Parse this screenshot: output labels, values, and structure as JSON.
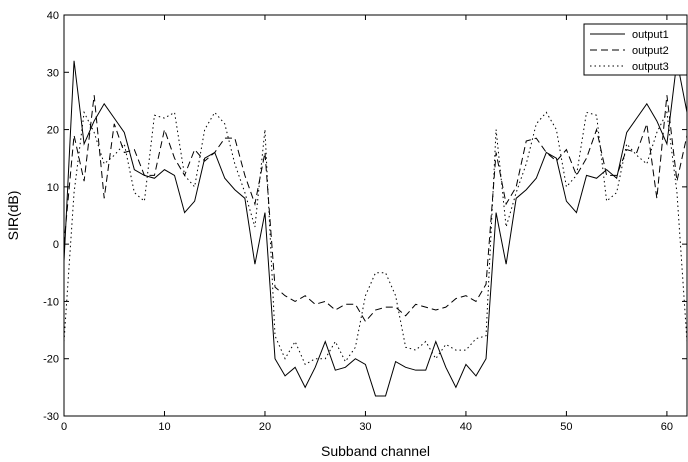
{
  "chart_data": {
    "type": "line",
    "title": "",
    "xlabel": "Subband channel",
    "ylabel": "SIR(dB)",
    "xlim": [
      0,
      62
    ],
    "ylim": [
      -30,
      40
    ],
    "xticks": [
      0,
      10,
      20,
      30,
      40,
      50,
      60
    ],
    "yticks": [
      -30,
      -20,
      -10,
      0,
      10,
      20,
      30,
      40
    ],
    "grid": false,
    "legend_position": "top-right",
    "x": [
      0,
      1,
      2,
      3,
      4,
      5,
      6,
      7,
      8,
      9,
      10,
      11,
      12,
      13,
      14,
      15,
      16,
      17,
      18,
      19,
      20,
      21,
      22,
      23,
      24,
      25,
      26,
      27,
      28,
      29,
      30,
      31,
      32,
      33,
      34,
      35,
      36,
      37,
      38,
      39,
      40,
      41,
      42,
      43,
      44,
      45,
      46,
      47,
      48,
      49,
      50,
      51,
      52,
      53,
      54,
      55,
      56,
      57,
      58,
      59,
      60,
      61,
      62
    ],
    "series": [
      {
        "name": "output1",
        "style": "solid",
        "values": [
          -3,
          32,
          17.5,
          21.5,
          24.5,
          22,
          19.5,
          13,
          12,
          11.5,
          13,
          12,
          5.5,
          7.5,
          15,
          16,
          11.5,
          9.5,
          8,
          -3.5,
          5.5,
          -20,
          -23,
          -21.5,
          -25,
          -21.5,
          -17,
          -22,
          -21.5,
          -20,
          -21,
          -26.5,
          -26.5,
          -20.5,
          -21.5,
          -22,
          -22,
          -17,
          -21.5,
          -25,
          -21,
          -23,
          -20,
          5.5,
          -3.5,
          8,
          9.5,
          11.5,
          16,
          15,
          7.5,
          5.5,
          12,
          11.5,
          13,
          11.5,
          19.5,
          22,
          24.5,
          21.5,
          17.5,
          32,
          23
        ]
      },
      {
        "name": "output2",
        "style": "dashed",
        "values": [
          0,
          19,
          11,
          26,
          8,
          21,
          16,
          16.5,
          12,
          12,
          20,
          15,
          12,
          16.5,
          14.5,
          16,
          18.5,
          18.5,
          12,
          7,
          16,
          -7.5,
          -9,
          -10,
          -9,
          -10.5,
          -10,
          -11.5,
          -10.5,
          -10.5,
          -13.5,
          -11.5,
          -11,
          -11,
          -12.5,
          -10.5,
          -11,
          -11.5,
          -11,
          -9.5,
          -9,
          -10,
          -7,
          16,
          7,
          10,
          18,
          18.5,
          16,
          14.5,
          16.5,
          12,
          15,
          20,
          12,
          12,
          16.5,
          16,
          21,
          8,
          26,
          11,
          19
        ]
      },
      {
        "name": "output3",
        "style": "dotted",
        "values": [
          -17,
          9,
          23,
          19.5,
          14,
          15.5,
          17.5,
          9,
          7.5,
          22.5,
          22,
          23,
          12,
          10,
          20,
          23,
          21,
          14,
          9,
          3,
          20,
          -16,
          -20,
          -17,
          -21,
          -20,
          -20,
          -17,
          -20.5,
          -18,
          -9,
          -5,
          -5,
          -9,
          -18,
          -18.5,
          -17,
          -20,
          -17.5,
          -18.5,
          -18.5,
          -16.5,
          -16,
          20,
          3,
          9,
          14,
          21,
          23,
          20,
          10,
          12,
          23,
          22.5,
          7.5,
          9,
          17.5,
          15.5,
          14,
          19.5,
          23,
          9,
          -17
        ]
      }
    ]
  }
}
